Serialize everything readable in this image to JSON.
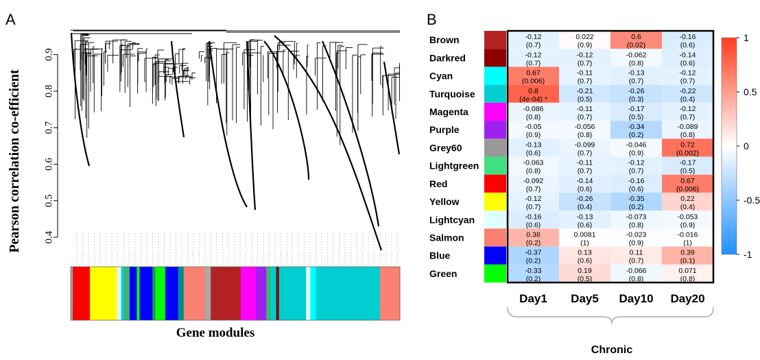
{
  "panels": {
    "a_letter": "A",
    "b_letter": "B"
  },
  "chart_data": [
    {
      "type": "dendrogram",
      "ylabel": "Pearson correlation co-efficient",
      "xlabel": "Gene modules",
      "yticks": [
        "0.4",
        "0.5",
        "0.6",
        "0.7",
        "0.8",
        "0.9"
      ],
      "ylim": [
        0.37,
        0.98
      ],
      "module_color_bar": [
        "#9aa7a4",
        "#ff0000",
        "#ffff00",
        "#e8f4f8",
        "#00ced1",
        "#3cb371",
        "#0000ff",
        "#00ff00",
        "#0000ff",
        "#2e8b57",
        "#00ff00",
        "#0000ff",
        "#008b8b",
        "#fa8072",
        "#a9a9a9",
        "#b22222",
        "#ff00ff",
        "#a020f0",
        "#3cb371",
        "#00ced1",
        "#8b0000",
        "#00ced1",
        "#e0ffff",
        "#00ffff",
        "#00ced1",
        "#fa8072"
      ]
    },
    {
      "type": "heatmap",
      "group_label": "Chronic",
      "columns": [
        "Day1",
        "Day5",
        "Day10",
        "Day20"
      ],
      "colorbar": {
        "min": -1,
        "max": 1,
        "ticks": [
          "1",
          "0.5",
          "0",
          "-0.5",
          "-1"
        ],
        "low_color": "#1e90ff",
        "mid_color": "#ffffff",
        "high_color": "#ff3c1e"
      },
      "rows": [
        {
          "module": "Brown",
          "color": "#b22222",
          "r": [
            -0.12,
            0.022,
            0.6,
            -0.16
          ],
          "r_text": [
            "-0.12",
            "0.022",
            "0.6",
            "-0.16"
          ],
          "p_text": [
            "(0.7)",
            "(0.9)",
            "(0.02)",
            "(0.6)"
          ]
        },
        {
          "module": "Darkred",
          "color": "#8b0000",
          "r": [
            -0.12,
            -0.12,
            -0.062,
            -0.14
          ],
          "r_text": [
            "-0.12",
            "-0.12",
            "-0.062",
            "-0.14"
          ],
          "p_text": [
            "(0.7)",
            "(0.7)",
            "(0.8)",
            "(0.6)"
          ]
        },
        {
          "module": "Cyan",
          "color": "#00ffff",
          "r": [
            0.67,
            -0.11,
            -0.13,
            -0.12
          ],
          "r_text": [
            "0.67",
            "-0.11",
            "-0.13",
            "-0.12"
          ],
          "p_text": [
            "(0.006)",
            "(0.7)",
            "(0.7)",
            "(0.7)"
          ]
        },
        {
          "module": "Turquoise",
          "color": "#00ced1",
          "r": [
            0.8,
            -0.21,
            -0.26,
            -0.22
          ],
          "r_text": [
            "0.8",
            "-0.21",
            "-0.26",
            "-0.22"
          ],
          "p_text": [
            "(4e-04) *",
            "(0.5)",
            "(0.3)",
            "(0.4)"
          ]
        },
        {
          "module": "Magenta",
          "color": "#ff00ff",
          "r": [
            -0.086,
            -0.11,
            -0.17,
            -0.12
          ],
          "r_text": [
            "-0.086",
            "-0.11",
            "-0.17",
            "-0.12"
          ],
          "p_text": [
            "(0.8)",
            "(0.7)",
            "(0.5)",
            "(0.7)"
          ]
        },
        {
          "module": "Purple",
          "color": "#a020f0",
          "r": [
            -0.05,
            -0.056,
            -0.34,
            -0.089
          ],
          "r_text": [
            "-0.05",
            "-0.056",
            "-0.34",
            "-0.089"
          ],
          "p_text": [
            "(0.9)",
            "(0.8)",
            "(0.2)",
            "(0.8)"
          ]
        },
        {
          "module": "Grey60",
          "color": "#999999",
          "r": [
            -0.13,
            -0.099,
            -0.046,
            0.72
          ],
          "r_text": [
            "-0.13",
            "-0.099",
            "-0.046",
            "0.72"
          ],
          "p_text": [
            "(0.6)",
            "(0.7)",
            "(0.9)",
            "(0.002)"
          ]
        },
        {
          "module": "Lightgreen",
          "color": "#40e080",
          "r": [
            -0.063,
            -0.11,
            -0.12,
            -0.17
          ],
          "r_text": [
            "-0.063",
            "-0.11",
            "-0.12",
            "-0.17"
          ],
          "p_text": [
            "(0.8)",
            "(0.7)",
            "(0.7)",
            "(0.5)"
          ]
        },
        {
          "module": "Red",
          "color": "#ff0000",
          "r": [
            -0.092,
            -0.14,
            -0.16,
            0.67
          ],
          "r_text": [
            "-0.092",
            "-0.14",
            "-0.16",
            "0.67"
          ],
          "p_text": [
            "(0.7)",
            "(0.6)",
            "(0.6)",
            "(0.006)"
          ]
        },
        {
          "module": "Yellow",
          "color": "#ffff00",
          "r": [
            -0.12,
            -0.26,
            -0.35,
            0.22
          ],
          "r_text": [
            "-0.12",
            "-0.26",
            "-0.35",
            "0.22"
          ],
          "p_text": [
            "(0.7)",
            "(0.4)",
            "(0.2)",
            "(0.4)"
          ]
        },
        {
          "module": "Lightcyan",
          "color": "#e0ffff",
          "r": [
            -0.16,
            -0.13,
            -0.073,
            -0.053
          ],
          "r_text": [
            "-0.16",
            "-0.13",
            "-0.073",
            "-0.053"
          ],
          "p_text": [
            "(0.6)",
            "(0.6)",
            "(0.8)",
            "(0.9)"
          ]
        },
        {
          "module": "Salmon",
          "color": "#fa8072",
          "r": [
            0.38,
            0.0081,
            -0.023,
            -0.016
          ],
          "r_text": [
            "0.38",
            "0.0081",
            "-0.023",
            "-0.016"
          ],
          "p_text": [
            "(0.2)",
            "(1)",
            "(0.9)",
            "(1)"
          ]
        },
        {
          "module": "Blue",
          "color": "#0000ff",
          "r": [
            -0.37,
            0.13,
            0.11,
            0.39
          ],
          "r_text": [
            "-0.37",
            "0.13",
            "0.11",
            "0.39"
          ],
          "p_text": [
            "(0.2)",
            "(0.6)",
            "(0.7)",
            "(0.1)"
          ]
        },
        {
          "module": "Green",
          "color": "#00ff00",
          "r": [
            -0.33,
            0.19,
            -0.066,
            0.071
          ],
          "r_text": [
            "-0.33",
            "0.19",
            "-0.066",
            "0.071"
          ],
          "p_text": [
            "(0.2)",
            "(0.5)",
            "(0.8)",
            "(0.8)"
          ]
        }
      ]
    }
  ]
}
